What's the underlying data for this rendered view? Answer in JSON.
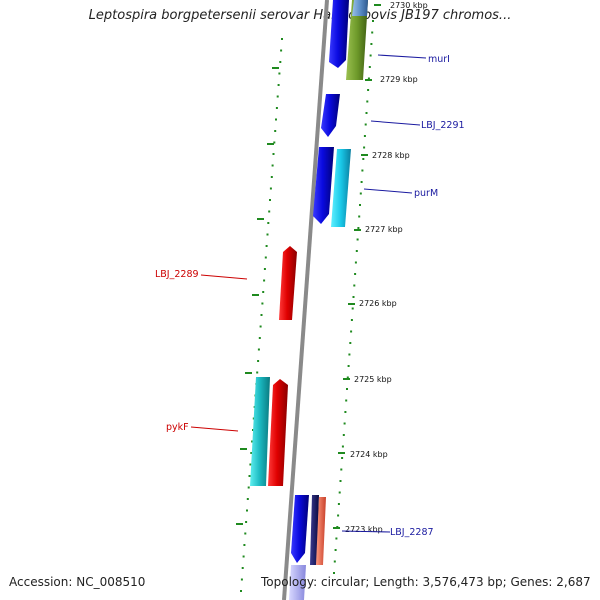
{
  "title": "Leptospira borgpetersenii serovar Hardjo–bovis JB197 chromos...",
  "footer": {
    "accession": "Accession: NC_008510",
    "summary": "Topology: circular; Length: 3,576,473 bp; Genes: 2,687"
  },
  "colors": {
    "backbone": "#8a8a8a",
    "tick": "#1f8a1f",
    "forward_gene": "#1010e0",
    "reverse_gene": "#e00000",
    "label_forward": "#1a1aa0",
    "label_reverse": "#cc0000"
  },
  "scale_ticks": [
    {
      "label": "2730 kbp"
    },
    {
      "label": "2729 kbp"
    },
    {
      "label": "2728 kbp"
    },
    {
      "label": "2727 kbp"
    },
    {
      "label": "2726 kbp"
    },
    {
      "label": "2725 kbp"
    },
    {
      "label": "2724 kbp"
    },
    {
      "label": "2723 kbp"
    }
  ],
  "gene_labels": [
    {
      "text": "murI",
      "strand": "forward"
    },
    {
      "text": "LBJ_2291",
      "strand": "forward"
    },
    {
      "text": "purM",
      "strand": "forward"
    },
    {
      "text": "LBJ_2289",
      "strand": "reverse"
    },
    {
      "text": "pykF",
      "strand": "reverse"
    },
    {
      "text": "LBJ_2287",
      "strand": "forward"
    }
  ]
}
